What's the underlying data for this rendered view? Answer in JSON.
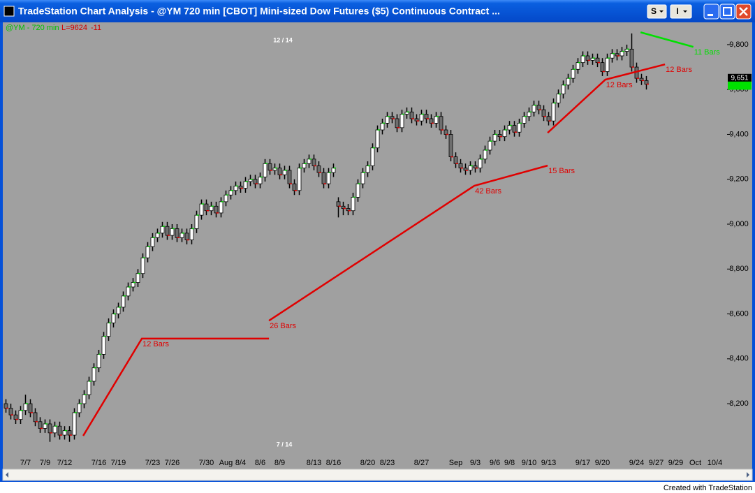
{
  "window": {
    "buttons": [
      "S",
      "I"
    ],
    "footer": "Created with TradeStation"
  },
  "chart_data": {
    "type": "candlestick",
    "title": "TradeStation Chart Analysis - @YM  720 min  [CBOT] Mini-sized Dow Futures ($5) Continuous Contract ...",
    "status": {
      "symbol": "@YM - 720 min",
      "last": {
        "value": 9624,
        "label": "L=9624"
      },
      "change": -11
    },
    "top_note": "12 / 14",
    "bottom_note": "7 / 14",
    "up_color": "#ffffff",
    "down_color": "#6e6e6e",
    "wick_color": "#000000",
    "up_tick_color": "#00d000",
    "down_tick_color": "#e00000",
    "grid": false,
    "ylim": [
      7970,
      9890
    ],
    "yticks": [
      {
        "value": 8200,
        "label": "8,200"
      },
      {
        "value": 8400,
        "label": "8,400"
      },
      {
        "value": 8600,
        "label": "8,600"
      },
      {
        "value": 8800,
        "label": "8,800"
      },
      {
        "value": 9000,
        "label": "9,000"
      },
      {
        "value": 9200,
        "label": "9,200"
      },
      {
        "value": 9400,
        "label": "9,400"
      },
      {
        "value": 9600,
        "label": "9,600"
      },
      {
        "value": 9800,
        "label": "9,800"
      }
    ],
    "price_marker": {
      "value": 9651,
      "label": "9,651"
    },
    "last_color": "#00e000",
    "categories": [
      null,
      null,
      null,
      null,
      "7/7",
      null,
      null,
      null,
      "7/9",
      null,
      null,
      null,
      "7/12",
      null,
      null,
      null,
      null,
      null,
      null,
      "7/16",
      null,
      null,
      null,
      "7/19",
      null,
      null,
      null,
      null,
      null,
      null,
      "7/23",
      null,
      null,
      null,
      "7/26",
      null,
      null,
      null,
      null,
      null,
      null,
      "7/30",
      null,
      null,
      null,
      "Aug",
      null,
      null,
      "8/4",
      null,
      null,
      null,
      "8/6",
      null,
      null,
      null,
      "8/9",
      null,
      null,
      null,
      null,
      null,
      null,
      "8/13",
      null,
      null,
      null,
      "8/16",
      null,
      null,
      null,
      null,
      null,
      null,
      "8/20",
      null,
      null,
      null,
      "8/23",
      null,
      null,
      null,
      null,
      null,
      null,
      "8/27",
      null,
      null,
      null,
      null,
      null,
      null,
      "Sep",
      null,
      null,
      null,
      "9/3",
      null,
      null,
      null,
      "9/6",
      null,
      null,
      "9/8",
      null,
      null,
      null,
      "9/10",
      null,
      null,
      null,
      "9/13",
      null,
      null,
      null,
      null,
      null,
      null,
      "9/17",
      null,
      null,
      null,
      "9/20",
      null,
      null,
      null,
      null,
      null,
      null,
      "9/24",
      null,
      null,
      null,
      "9/27",
      null,
      null,
      null,
      "9/29",
      null,
      null,
      null,
      "Oct",
      null,
      null,
      null,
      "10/4",
      null,
      null
    ],
    "open": [
      8200,
      8180,
      8150,
      8130,
      8170,
      8200,
      8160,
      8120,
      8090,
      8110,
      8070,
      8100,
      8060,
      8080,
      8060,
      8160,
      8200,
      8240,
      8300,
      8360,
      8420,
      8500,
      8560,
      8600,
      8630,
      8680,
      8720,
      8740,
      8780,
      8850,
      8900,
      8940,
      8960,
      8990,
      8950,
      8980,
      8940,
      8960,
      8930,
      8980,
      9040,
      9090,
      9060,
      9080,
      9050,
      9100,
      9130,
      9150,
      9170,
      9160,
      9190,
      9200,
      9180,
      9210,
      9270,
      9240,
      9250,
      9220,
      9240,
      9180,
      9150,
      9250,
      9270,
      9290,
      9260,
      9230,
      9180,
      9230,
      9100,
      9080,
      9070,
      9060,
      9120,
      9180,
      9230,
      9260,
      9340,
      9420,
      9450,
      9480,
      9470,
      9430,
      9490,
      9500,
      9470,
      9460,
      9490,
      9470,
      9450,
      9480,
      9420,
      9400,
      9300,
      9270,
      9250,
      9240,
      9260,
      9250,
      9290,
      9330,
      9370,
      9400,
      9390,
      9420,
      9440,
      9410,
      9450,
      9480,
      9500,
      9530,
      9510,
      9480,
      9460,
      9540,
      9580,
      9620,
      9650,
      9690,
      9720,
      9750,
      9730,
      9740,
      9720,
      9680,
      9740,
      9760,
      9750,
      9770,
      9780,
      9700,
      9650,
      9640,
      null,
      null,
      null,
      null,
      null,
      null,
      null,
      null,
      null,
      null,
      null,
      null,
      null,
      null,
      null,
      null
    ],
    "high": [
      8220,
      8200,
      8170,
      8190,
      8240,
      8220,
      8180,
      8140,
      8130,
      8130,
      8120,
      8120,
      8100,
      8100,
      8180,
      8220,
      8260,
      8320,
      8380,
      8440,
      8520,
      8580,
      8620,
      8650,
      8700,
      8740,
      8760,
      8800,
      8870,
      8920,
      8960,
      8980,
      9010,
      9010,
      9000,
      9000,
      8980,
      8980,
      9000,
      9060,
      9110,
      9110,
      9100,
      9100,
      9120,
      9150,
      9170,
      9190,
      9190,
      9210,
      9220,
      9220,
      9230,
      9290,
      9290,
      9270,
      9270,
      9260,
      9260,
      9200,
      9270,
      9290,
      9310,
      9310,
      9280,
      9250,
      9250,
      9270,
      9120,
      9100,
      9090,
      9140,
      9200,
      9250,
      9280,
      9360,
      9440,
      9470,
      9500,
      9500,
      9490,
      9510,
      9520,
      9520,
      9490,
      9510,
      9510,
      9490,
      9500,
      9500,
      9440,
      9420,
      9320,
      9290,
      9270,
      9280,
      9280,
      9310,
      9350,
      9390,
      9420,
      9420,
      9440,
      9460,
      9460,
      9470,
      9500,
      9520,
      9550,
      9550,
      9530,
      9500,
      9560,
      9600,
      9640,
      9670,
      9710,
      9740,
      9770,
      9770,
      9760,
      9760,
      9740,
      9760,
      9780,
      9780,
      9790,
      9800,
      9850,
      9720,
      9670,
      9660,
      null,
      null,
      null,
      null,
      null,
      null,
      null,
      null,
      null,
      null,
      null,
      null,
      null,
      null,
      null,
      null
    ],
    "low": [
      8160,
      8130,
      8110,
      8110,
      8150,
      8140,
      8100,
      8070,
      8070,
      8030,
      8050,
      8040,
      8040,
      8030,
      8040,
      8140,
      8180,
      8220,
      8280,
      8340,
      8400,
      8480,
      8540,
      8580,
      8610,
      8660,
      8700,
      8720,
      8760,
      8830,
      8880,
      8920,
      8940,
      8930,
      8930,
      8920,
      8920,
      8910,
      8910,
      8960,
      9020,
      9040,
      9040,
      9030,
      9030,
      9080,
      9110,
      9130,
      9140,
      9140,
      9170,
      9160,
      9160,
      9190,
      9220,
      9220,
      9200,
      9200,
      9160,
      9130,
      9130,
      9230,
      9250,
      9240,
      9210,
      9160,
      9160,
      9210,
      9030,
      9040,
      9040,
      9040,
      9100,
      9160,
      9210,
      9240,
      9320,
      9400,
      9430,
      9450,
      9410,
      9410,
      9470,
      9450,
      9440,
      9440,
      9450,
      9430,
      9430,
      9400,
      9380,
      9280,
      9250,
      9230,
      9220,
      9220,
      9230,
      9230,
      9270,
      9310,
      9350,
      9370,
      9370,
      9400,
      9390,
      9390,
      9430,
      9460,
      9480,
      9490,
      9460,
      9440,
      9440,
      9520,
      9560,
      9600,
      9630,
      9670,
      9700,
      9710,
      9710,
      9700,
      9660,
      9660,
      9720,
      9730,
      9730,
      9750,
      9680,
      9630,
      9620,
      9600,
      null,
      null,
      null,
      null,
      null,
      null,
      null,
      null,
      null,
      null,
      null,
      null,
      null,
      null,
      null,
      null
    ],
    "close": [
      8180,
      8150,
      8130,
      8170,
      8200,
      8160,
      8120,
      8090,
      8110,
      8070,
      8100,
      8060,
      8080,
      8060,
      8160,
      8200,
      8240,
      8300,
      8360,
      8420,
      8500,
      8560,
      8600,
      8630,
      8680,
      8720,
      8740,
      8780,
      8850,
      8900,
      8940,
      8960,
      8990,
      8950,
      8980,
      8940,
      8960,
      8930,
      8980,
      9040,
      9090,
      9060,
      9080,
      9050,
      9100,
      9130,
      9150,
      9170,
      9160,
      9190,
      9200,
      9180,
      9210,
      9270,
      9240,
      9250,
      9220,
      9240,
      9180,
      9150,
      9250,
      9270,
      9290,
      9260,
      9230,
      9180,
      9230,
      9250,
      9080,
      9070,
      9060,
      9120,
      9180,
      9230,
      9260,
      9340,
      9420,
      9450,
      9480,
      9470,
      9430,
      9490,
      9500,
      9470,
      9460,
      9490,
      9470,
      9450,
      9480,
      9420,
      9400,
      9300,
      9270,
      9250,
      9240,
      9260,
      9250,
      9290,
      9330,
      9370,
      9400,
      9390,
      9420,
      9440,
      9410,
      9450,
      9480,
      9500,
      9530,
      9510,
      9480,
      9460,
      9540,
      9580,
      9620,
      9650,
      9690,
      9720,
      9750,
      9730,
      9740,
      9720,
      9680,
      9740,
      9760,
      9750,
      9770,
      9780,
      9700,
      9650,
      9640,
      9624,
      null,
      null,
      null,
      null,
      null,
      null,
      null,
      null,
      null,
      null,
      null,
      null,
      null,
      null,
      null,
      null
    ],
    "trendlines": [
      {
        "color": "#e00000",
        "x": [
          15.8,
          27.8,
          53.8
        ],
        "y": [
          8057,
          8490,
          8490
        ],
        "labels": [
          null,
          "12 Bars",
          null
        ]
      },
      {
        "color": "#e00000",
        "x": [
          53.8,
          95.8,
          110.8
        ],
        "y": [
          8570,
          9171,
          9261
        ],
        "labels": [
          "26 Bars",
          "42 Bars",
          "15 Bars"
        ]
      },
      {
        "color": "#e00000",
        "x": [
          110.8,
          122.6,
          134.8
        ],
        "y": [
          9407,
          9644,
          9712
        ],
        "labels": [
          null,
          "12 Bars",
          "12 Bars"
        ]
      },
      {
        "color": "#00e000",
        "x": [
          129.8,
          140.6
        ],
        "y": [
          9855,
          9790
        ],
        "labels": [
          null,
          "11 Bars"
        ]
      }
    ]
  }
}
